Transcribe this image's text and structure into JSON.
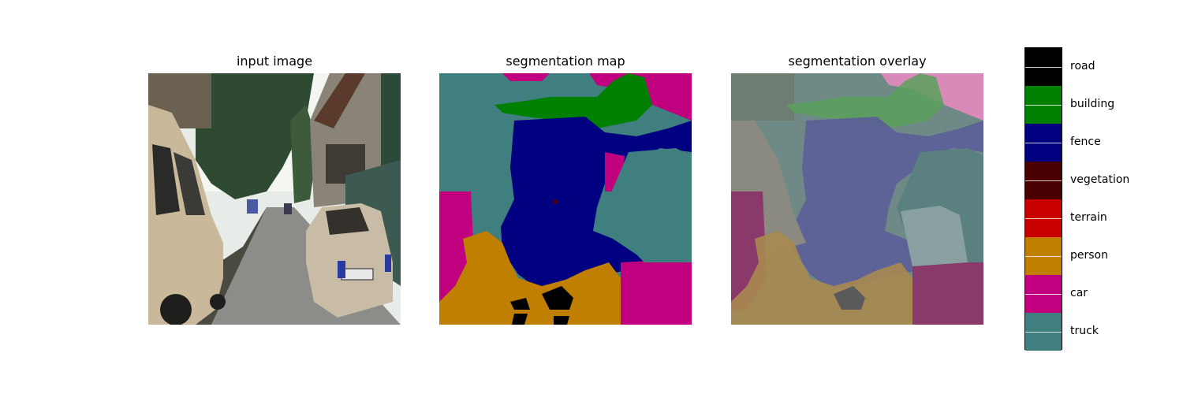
{
  "panels": {
    "input_title": "input image",
    "map_title": "segmentation map",
    "overlay_title": "segmentation overlay"
  },
  "legend": {
    "classes": [
      {
        "label": "road",
        "color": "#000000"
      },
      {
        "label": "building",
        "color": "#008000"
      },
      {
        "label": "fence",
        "color": "#000080"
      },
      {
        "label": "vegetation",
        "color": "#4a0000"
      },
      {
        "label": "terrain",
        "color": "#c80000"
      },
      {
        "label": "person",
        "color": "#c07f00"
      },
      {
        "label": "car",
        "color": "#c0007f"
      },
      {
        "label": "truck",
        "color": "#407f7f"
      }
    ]
  }
}
